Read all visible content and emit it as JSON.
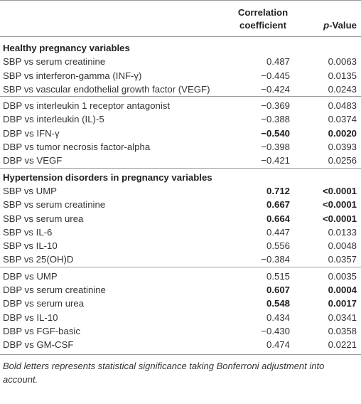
{
  "header": {
    "label": "",
    "corr_line1": "Correlation",
    "corr_line2": "coefficient",
    "p_value_italic": "p",
    "p_value_rest": "-Value"
  },
  "sections": [
    {
      "title": "Healthy pregnancy variables",
      "groups": [
        [
          {
            "label": "SBP vs serum creatinine",
            "corr": "0.487",
            "p": "0.0063",
            "bold": false
          },
          {
            "label": "SBP vs interferon-gamma (INF-γ)",
            "corr": "−0.445",
            "p": "0.0135",
            "bold": false
          },
          {
            "label": "SBP vs vascular endothelial growth factor (VEGF)",
            "corr": "−0.424",
            "p": "0.0243",
            "bold": false
          }
        ],
        [
          {
            "label": "DBP vs interleukin 1 receptor antagonist",
            "corr": "−0.369",
            "p": "0.0483",
            "bold": false
          },
          {
            "label": "DBP vs interleukin (IL)-5",
            "corr": "−0.388",
            "p": "0.0374",
            "bold": false
          },
          {
            "label": "DBP vs IFN-γ",
            "corr": "−0.540",
            "p": "0.0020",
            "bold": true
          },
          {
            "label": "DBP vs tumor necrosis factor-alpha",
            "corr": "−0.398",
            "p": "0.0393",
            "bold": false
          },
          {
            "label": "DBP vs VEGF",
            "corr": "−0.421",
            "p": "0.0256",
            "bold": false
          }
        ]
      ]
    },
    {
      "title": "Hypertension disorders in pregnancy variables",
      "groups": [
        [
          {
            "label": "SBP vs UMP",
            "corr": "0.712",
            "p": "<0.0001",
            "bold": true
          },
          {
            "label": "SBP vs serum creatinine",
            "corr": "0.667",
            "p": "<0.0001",
            "bold": true
          },
          {
            "label": "SBP vs serum urea",
            "corr": "0.664",
            "p": "<0.0001",
            "bold": true
          },
          {
            "label": "SBP vs IL-6",
            "corr": "0.447",
            "p": "0.0133",
            "bold": false
          },
          {
            "label": "SBP vs IL-10",
            "corr": "0.556",
            "p": "0.0048",
            "bold": false
          },
          {
            "label": "SBP vs 25(OH)D",
            "corr": "−0.384",
            "p": "0.0357",
            "bold": false
          }
        ],
        [
          {
            "label": "DBP vs UMP",
            "corr": "0.515",
            "p": "0.0035",
            "bold": false
          },
          {
            "label": "DBP vs serum creatinine",
            "corr": "0.607",
            "p": "0.0004",
            "bold": true
          },
          {
            "label": "DBP vs serum urea",
            "corr": "0.548",
            "p": "0.0017",
            "bold": true
          },
          {
            "label": "DBP vs IL-10",
            "corr": "0.434",
            "p": "0.0341",
            "bold": false
          },
          {
            "label": "DBP vs FGF-basic",
            "corr": "−0.430",
            "p": "0.0358",
            "bold": false
          },
          {
            "label": "DBP vs GM-CSF",
            "corr": "0.474",
            "p": "0.0221",
            "bold": false
          }
        ]
      ]
    }
  ],
  "footnote": "Bold letters represents statistical significance taking Bonferroni adjustment into account."
}
